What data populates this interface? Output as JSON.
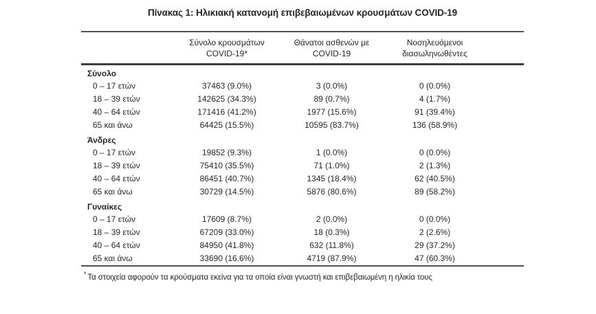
{
  "page": {
    "title": "Πίνακας 1: Ηλικιακή κατανομή επιβεβαιωμένων κρουσμάτων COVID-19"
  },
  "table": {
    "col_headers": {
      "cases_line1": "Σύνολο κρουσμάτων",
      "cases_line2": "COVID-19*",
      "deaths_line1": "Θάνατοι ασθενών με",
      "deaths_line2": "COVID-19",
      "intubated_line1": "Νοσηλευόμενοι",
      "intubated_line2": "διασωληνωθέντες"
    },
    "sections": [
      {
        "label": "Σύνολο",
        "rows": [
          {
            "age": "0 – 17 ετών",
            "cases": "37463 (9.0%)",
            "deaths": "3 (0.0%)",
            "intubated": "0 (0.0%)"
          },
          {
            "age": "18 – 39 ετών",
            "cases": "142625 (34.3%)",
            "deaths": "89 (0.7%)",
            "intubated": "4 (1.7%)"
          },
          {
            "age": "40 – 64 ετών",
            "cases": "171416 (41.2%)",
            "deaths": "1977 (15.6%)",
            "intubated": "91 (39.4%)"
          },
          {
            "age": "65 και άνω",
            "cases": "64425 (15.5%)",
            "deaths": "10595 (83.7%)",
            "intubated": "136 (58.9%)"
          }
        ]
      },
      {
        "label": "Άνδρες",
        "rows": [
          {
            "age": "0 – 17 ετών",
            "cases": "19852 (9.3%)",
            "deaths": "1 (0.0%)",
            "intubated": "0 (0.0%)"
          },
          {
            "age": "18 – 39 ετών",
            "cases": "75410 (35.5%)",
            "deaths": "71 (1.0%)",
            "intubated": "2 (1.3%)"
          },
          {
            "age": "40 – 64 ετών",
            "cases": "86451 (40.7%)",
            "deaths": "1345 (18.4%)",
            "intubated": "62 (40.5%)"
          },
          {
            "age": "65 και άνω",
            "cases": "30729 (14.5%)",
            "deaths": "5876 (80.6%)",
            "intubated": "89 (58.2%)"
          }
        ]
      },
      {
        "label": "Γυναίκες",
        "rows": [
          {
            "age": "0 – 17 ετών",
            "cases": "17609 (8.7%)",
            "deaths": "2 (0.0%)",
            "intubated": "0 (0.0%)"
          },
          {
            "age": "18 – 39 ετών",
            "cases": "67209 (33.0%)",
            "deaths": "18 (0.3%)",
            "intubated": "2 (2.6%)"
          },
          {
            "age": "40 – 64 ετών",
            "cases": "84950 (41.8%)",
            "deaths": "632 (11.8%)",
            "intubated": "29 (37.2%)"
          },
          {
            "age": "65 και άνω",
            "cases": "33690 (16.6%)",
            "deaths": "4719 (87.9%)",
            "intubated": "47 (60.3%)"
          }
        ]
      }
    ],
    "footnote_marker": "*",
    "footnote_text": "Τα στοιχεία αφορούν τα κρούσματα εκείνα για τα οποία είναι γνωστή και επιβεβαιωμένη η ηλικία τους"
  },
  "colors": {
    "text": "#26262c",
    "rule": "#515155",
    "background": "#ffffff"
  }
}
